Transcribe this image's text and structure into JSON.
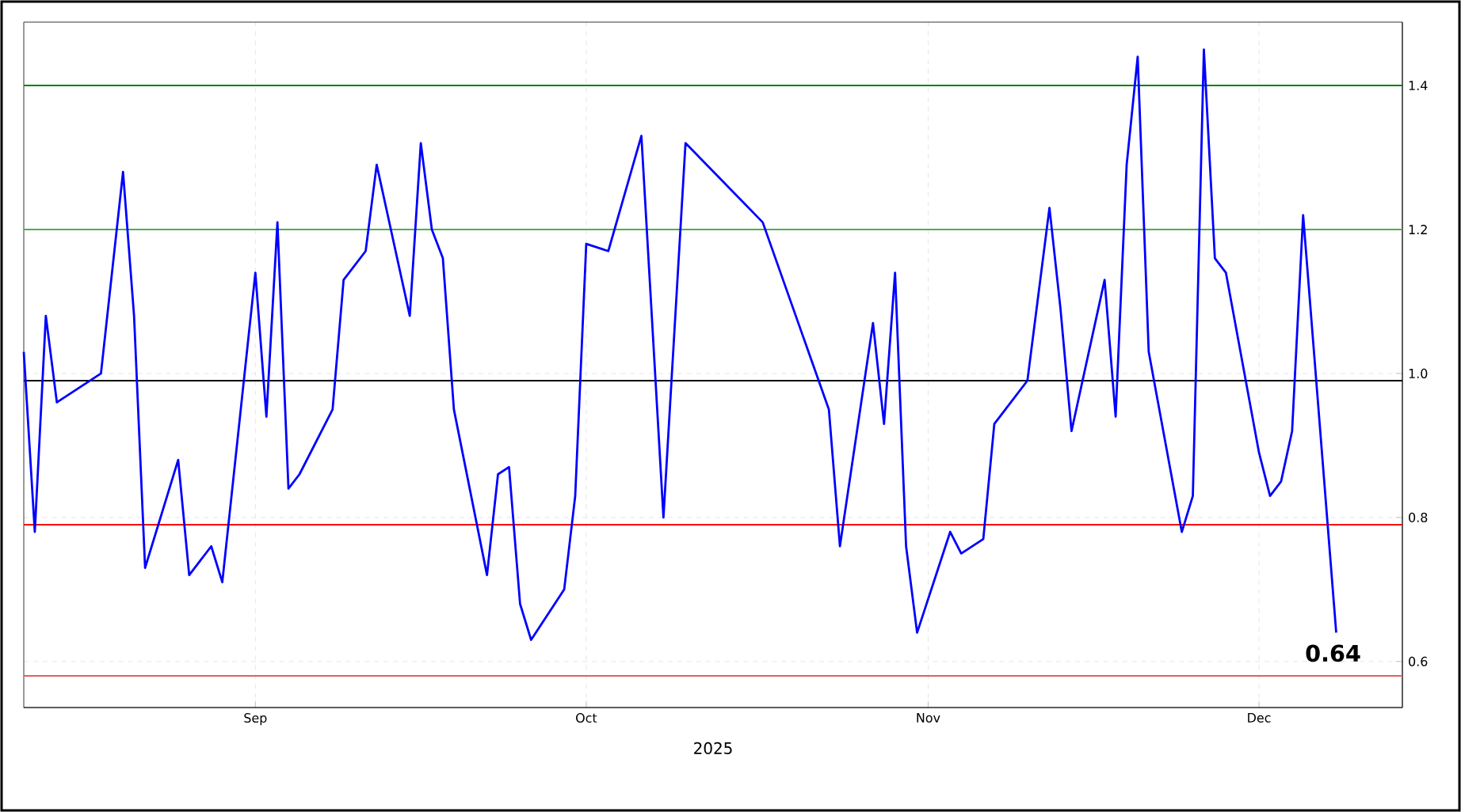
{
  "chart_data": {
    "type": "line",
    "xlabel": "2025",
    "x": [
      "2025-08-11",
      "2025-08-12",
      "2025-08-13",
      "2025-08-14",
      "2025-08-18",
      "2025-08-20",
      "2025-08-21",
      "2025-08-22",
      "2025-08-25",
      "2025-08-26",
      "2025-08-28",
      "2025-08-29",
      "2025-09-01",
      "2025-09-02",
      "2025-09-03",
      "2025-09-04",
      "2025-09-05",
      "2025-09-08",
      "2025-09-09",
      "2025-09-11",
      "2025-09-12",
      "2025-09-15",
      "2025-09-16",
      "2025-09-17",
      "2025-09-18",
      "2025-09-19",
      "2025-09-22",
      "2025-09-23",
      "2025-09-24",
      "2025-09-25",
      "2025-09-26",
      "2025-09-29",
      "2025-09-30",
      "2025-10-01",
      "2025-10-03",
      "2025-10-06",
      "2025-10-08",
      "2025-10-10",
      "2025-10-17",
      "2025-10-23",
      "2025-10-24",
      "2025-10-27",
      "2025-10-28",
      "2025-10-29",
      "2025-10-30",
      "2025-10-31",
      "2025-11-03",
      "2025-11-04",
      "2025-11-06",
      "2025-11-07",
      "2025-11-10",
      "2025-11-12",
      "2025-11-13",
      "2025-11-14",
      "2025-11-17",
      "2025-11-18",
      "2025-11-19",
      "2025-11-20",
      "2025-11-21",
      "2025-11-24",
      "2025-11-25",
      "2025-11-26",
      "2025-11-27",
      "2025-11-28",
      "2025-12-01",
      "2025-12-02",
      "2025-12-03",
      "2025-12-04",
      "2025-12-05",
      "2025-12-08"
    ],
    "series": [
      {
        "color": "#0000ff",
        "values": [
          1.03,
          0.78,
          1.08,
          0.96,
          1.0,
          1.28,
          1.08,
          0.73,
          0.88,
          0.72,
          0.76,
          0.71,
          1.14,
          0.94,
          1.21,
          0.84,
          0.86,
          0.95,
          1.13,
          1.17,
          1.29,
          1.08,
          1.32,
          1.2,
          1.16,
          0.95,
          0.72,
          0.86,
          0.87,
          0.68,
          0.63,
          0.7,
          0.83,
          1.18,
          1.17,
          1.33,
          0.8,
          1.32,
          1.21,
          0.95,
          0.76,
          1.07,
          0.93,
          1.14,
          0.76,
          0.64,
          0.78,
          0.75,
          0.77,
          0.93,
          0.99,
          1.23,
          1.09,
          0.92,
          1.13,
          0.94,
          1.29,
          1.44,
          1.03,
          0.78,
          0.83,
          1.45,
          1.16,
          1.14,
          0.89,
          0.83,
          0.85,
          0.92,
          1.22,
          0.64
        ]
      }
    ],
    "xlim": [
      "2025-08-11",
      "2025-12-14"
    ],
    "xticks": [
      {
        "value": "2025-09-01",
        "label": "Sep"
      },
      {
        "value": "2025-10-01",
        "label": "Oct"
      },
      {
        "value": "2025-11-01",
        "label": "Nov"
      },
      {
        "value": "2025-12-01",
        "label": "Dec"
      }
    ],
    "ylim": [
      0.536,
      1.488
    ],
    "yticks": [
      {
        "value": 0.6,
        "label": "0.6"
      },
      {
        "value": 0.8,
        "label": "0.8"
      },
      {
        "value": 1.0,
        "label": "1.0"
      },
      {
        "value": 1.2,
        "label": "1.2"
      },
      {
        "value": 1.4,
        "label": "1.4"
      }
    ],
    "ref_lines": [
      {
        "axis": "y",
        "value": 1.4,
        "color": "#008000"
      },
      {
        "axis": "y",
        "value": 1.2,
        "color": "#4caf50"
      },
      {
        "axis": "y",
        "value": 0.99,
        "color": "#000000"
      },
      {
        "axis": "y",
        "value": 0.79,
        "color": "#ff0000"
      },
      {
        "axis": "y",
        "value": 0.58,
        "color": "#e06060"
      }
    ],
    "annotations": [
      {
        "text": "0.64",
        "x": "2025-12-08",
        "y": 0.64
      }
    ],
    "grid": true,
    "marker": "none",
    "line_style": "solid"
  }
}
